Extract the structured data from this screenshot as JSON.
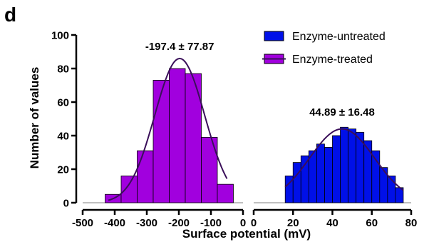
{
  "chart_data": {
    "type": "bar",
    "panel_label": "d",
    "ylabel": "Number of values",
    "xlabel": "Surface potential (mV)",
    "ylim": [
      0,
      100
    ],
    "yticks": [
      0,
      20,
      40,
      60,
      80,
      100
    ],
    "panels": [
      {
        "xlim": [
          -500,
          0
        ],
        "xticks": [
          -500,
          -400,
          -300,
          -200,
          -100,
          0
        ],
        "series": "Enzyme-treated"
      },
      {
        "xlim": [
          0,
          80
        ],
        "xticks": [
          0,
          20,
          40,
          60,
          80
        ],
        "series": "Enzyme-untreated"
      }
    ],
    "series": [
      {
        "name": "Enzyme-treated",
        "color": "#A100DE",
        "bins": [
          {
            "start": -430,
            "end": -380,
            "value": 5
          },
          {
            "start": -380,
            "end": -330,
            "value": 16
          },
          {
            "start": -330,
            "end": -280,
            "value": 31
          },
          {
            "start": -280,
            "end": -230,
            "value": 73
          },
          {
            "start": -230,
            "end": -180,
            "value": 80
          },
          {
            "start": -180,
            "end": -130,
            "value": 77
          },
          {
            "start": -130,
            "end": -80,
            "value": 39
          },
          {
            "start": -80,
            "end": -30,
            "value": 11
          }
        ],
        "fit": {
          "mean": -197.4,
          "sd": 77.87,
          "peak": 86,
          "from": -420,
          "to": -50
        },
        "annotation": "-197.4 ± 77.87"
      },
      {
        "name": "Enzyme-untreated",
        "color": "#0010E8",
        "bins": [
          {
            "start": 16,
            "end": 20,
            "value": 16
          },
          {
            "start": 20,
            "end": 24,
            "value": 24
          },
          {
            "start": 24,
            "end": 28,
            "value": 28
          },
          {
            "start": 28,
            "end": 32,
            "value": 31
          },
          {
            "start": 32,
            "end": 36,
            "value": 35
          },
          {
            "start": 36,
            "end": 40,
            "value": 33
          },
          {
            "start": 40,
            "end": 44,
            "value": 40
          },
          {
            "start": 44,
            "end": 48,
            "value": 45
          },
          {
            "start": 48,
            "end": 52,
            "value": 44
          },
          {
            "start": 52,
            "end": 56,
            "value": 42
          },
          {
            "start": 56,
            "end": 60,
            "value": 37
          },
          {
            "start": 60,
            "end": 64,
            "value": 31
          },
          {
            "start": 64,
            "end": 68,
            "value": 21
          },
          {
            "start": 68,
            "end": 72,
            "value": 16
          },
          {
            "start": 72,
            "end": 76,
            "value": 9
          }
        ],
        "fit": {
          "mean": 44.89,
          "sd": 16.48,
          "peak": 44,
          "from": 16,
          "to": 76
        },
        "annotation": "44.89 ± 16.48"
      }
    ],
    "legend": {
      "position": "top-right",
      "entries": [
        {
          "label": "Enzyme-untreated",
          "color": "#0010E8"
        },
        {
          "label": "Enzyme-treated",
          "color": "#A100DE"
        }
      ]
    },
    "fit_line_color": "#3A0F5A",
    "grid": false
  }
}
